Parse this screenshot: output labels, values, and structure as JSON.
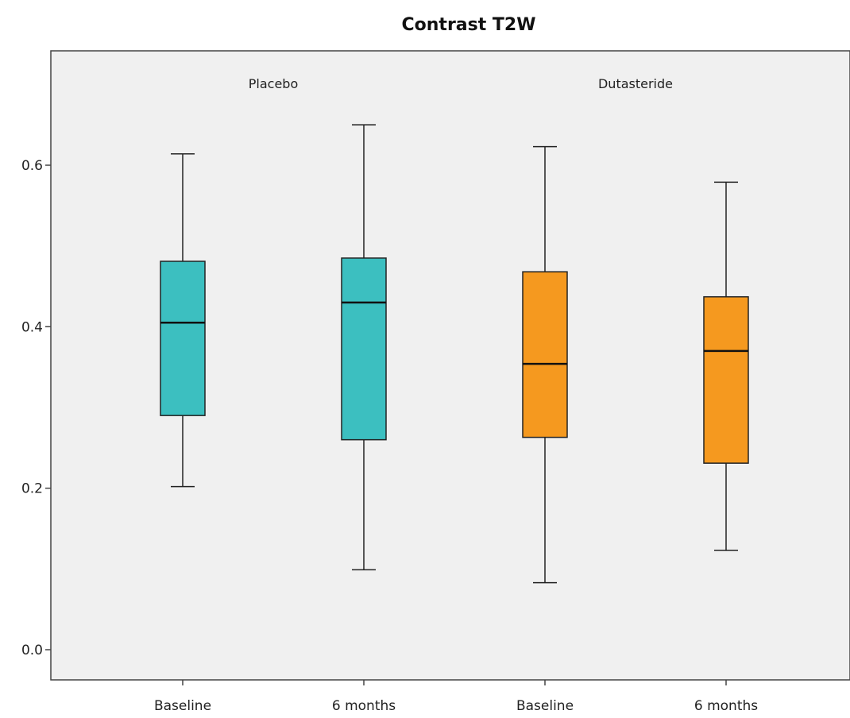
{
  "chart_data": {
    "type": "boxplot",
    "title": "Contrast T2W",
    "xlabel": "",
    "ylabel": "",
    "ylim": [
      -0.04,
      0.74
    ],
    "yticks": [
      "0.0",
      "0.2",
      "0.4",
      "0.6"
    ],
    "ytick_values": [
      0.0,
      0.2,
      0.4,
      0.6
    ],
    "grid": false,
    "legend": "none",
    "groups": [
      "Placebo",
      "Dutasteride"
    ],
    "group_colors": [
      "#3cbfc0",
      "#f5991f"
    ],
    "boxes": [
      {
        "group": "Placebo",
        "category": "Baseline",
        "whisker_low": 0.202,
        "q1": 0.29,
        "median": 0.405,
        "q3": 0.481,
        "whisker_high": 0.614
      },
      {
        "group": "Placebo",
        "category": "6 months",
        "whisker_low": 0.099,
        "q1": 0.26,
        "median": 0.43,
        "q3": 0.485,
        "whisker_high": 0.65
      },
      {
        "group": "Dutasteride",
        "category": "Baseline",
        "whisker_low": 0.083,
        "q1": 0.263,
        "median": 0.354,
        "q3": 0.468,
        "whisker_high": 0.623
      },
      {
        "group": "Dutasteride",
        "category": "6 months",
        "whisker_low": 0.123,
        "q1": 0.231,
        "median": 0.37,
        "q3": 0.437,
        "whisker_high": 0.579
      }
    ]
  }
}
